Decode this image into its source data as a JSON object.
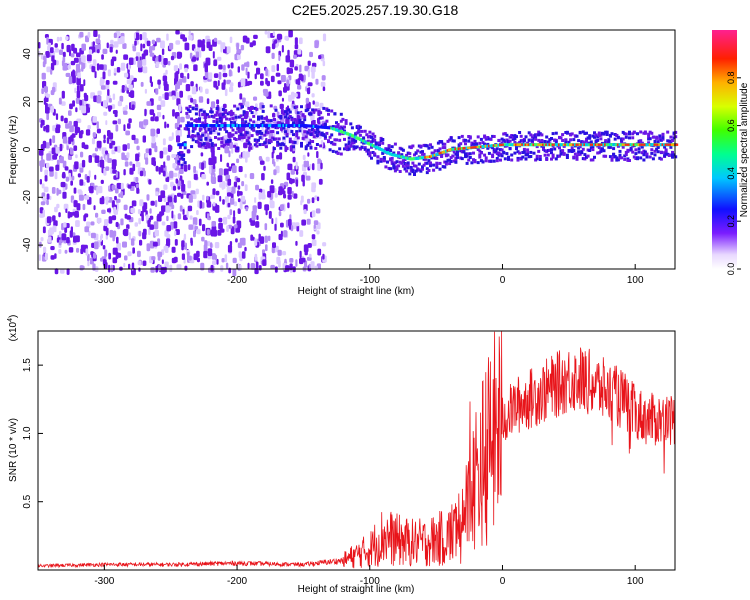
{
  "title": "C2E5.2025.257.19.30.G18",
  "colors": {
    "snr_line": "#e8141a",
    "background": "#ffffff",
    "axis": "#000000",
    "spectro_base": "#6a16e6"
  },
  "colorbar": {
    "label": "Normalized spectral amplitude",
    "ticks": [
      "0.0",
      "0.2",
      "0.4",
      "0.6",
      "0.8"
    ],
    "tick_values": [
      0.0,
      0.2,
      0.4,
      0.6,
      0.8
    ],
    "range": [
      0,
      1
    ]
  },
  "chart_data": [
    {
      "type": "heatmap",
      "title": "C2E5.2025.257.19.30.G18",
      "xlabel": "Height of straight line (km)",
      "ylabel": "Frequency (Hz)",
      "xlim": [
        -350,
        130
      ],
      "ylim": [
        -50,
        50
      ],
      "x_ticks": [
        -300,
        -200,
        -100,
        0,
        100
      ],
      "x_tick_labels": [
        "-300",
        "-200",
        "-100",
        "0",
        "100"
      ],
      "y_ticks": [
        -40,
        -20,
        0,
        20,
        40
      ],
      "y_tick_labels": [
        "-40",
        "-20",
        "0",
        "20",
        "40"
      ],
      "ridge": {
        "description_points": [
          {
            "x": -240,
            "y": 10
          },
          {
            "x": -220,
            "y": 10
          },
          {
            "x": -200,
            "y": 10
          },
          {
            "x": -150,
            "y": 10
          },
          {
            "x": -130,
            "y": 9
          },
          {
            "x": -115,
            "y": 6
          },
          {
            "x": -100,
            "y": 2
          },
          {
            "x": -85,
            "y": -2
          },
          {
            "x": -70,
            "y": -4
          },
          {
            "x": -55,
            "y": -3
          },
          {
            "x": -40,
            "y": 0
          },
          {
            "x": -20,
            "y": 1
          },
          {
            "x": 0,
            "y": 2
          },
          {
            "x": 50,
            "y": 2
          },
          {
            "x": 100,
            "y": 2
          },
          {
            "x": 130,
            "y": 2
          }
        ],
        "noise_region_x": [
          -350,
          -150
        ],
        "strong_segment_x": [
          -60,
          130
        ]
      }
    },
    {
      "type": "line",
      "xlabel": "Height of straight line (km)",
      "ylabel": "SNR (10 * v/v)",
      "y_multiplier_label": "(x10",
      "y_multiplier_exp": "4",
      "xlim": [
        -350,
        130
      ],
      "ylim": [
        0,
        17500
      ],
      "x_ticks": [
        -300,
        -200,
        -100,
        0,
        100
      ],
      "x_tick_labels": [
        "-300",
        "-200",
        "-100",
        "0",
        "100"
      ],
      "y_ticks": [
        5000,
        10000,
        15000
      ],
      "y_tick_labels": [
        "0.5",
        "1.0",
        "1.5"
      ],
      "series": [
        {
          "name": "SNR",
          "envelope_x": [
            -350,
            -300,
            -250,
            -200,
            -150,
            -120,
            -100,
            -90,
            -80,
            -70,
            -60,
            -50,
            -40,
            -35,
            -30,
            -25,
            -20,
            -15,
            -10,
            -5,
            0,
            10,
            20,
            30,
            40,
            50,
            60,
            70,
            80,
            90,
            100,
            110,
            120,
            130
          ],
          "envelope_y": [
            300,
            400,
            400,
            500,
            400,
            700,
            1500,
            2500,
            2200,
            2000,
            2000,
            2200,
            2500,
            3000,
            4000,
            5000,
            7000,
            8000,
            9000,
            10000,
            11000,
            12000,
            12500,
            13000,
            13500,
            14000,
            14000,
            13500,
            13000,
            12500,
            11500,
            11000,
            11000,
            11000
          ]
        }
      ]
    }
  ]
}
